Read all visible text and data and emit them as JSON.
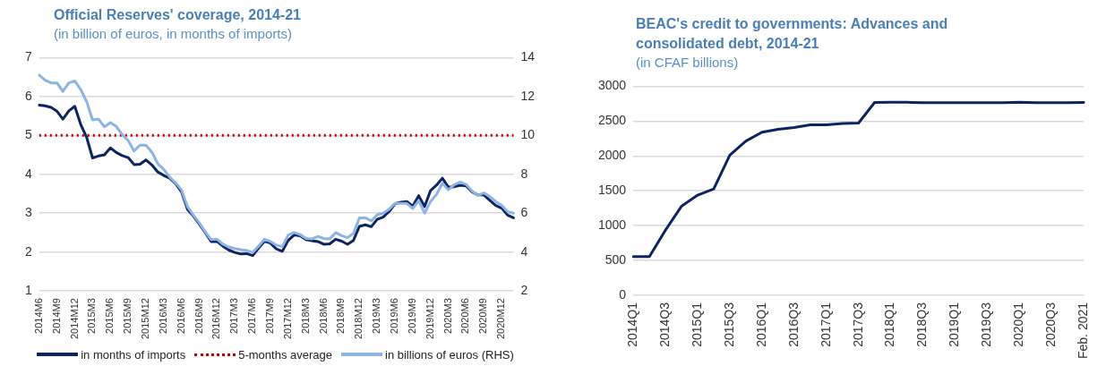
{
  "chart_data": [
    {
      "type": "line",
      "title": "Official Reserves' coverage, 2014-21",
      "subtitle": "(in billion of euros, in months of imports)",
      "categories": [
        "2014M6",
        null,
        null,
        "2014M9",
        null,
        null,
        "2014M12",
        null,
        null,
        "2015M3",
        null,
        null,
        "2015M6",
        null,
        null,
        "2015M9",
        null,
        null,
        "2015M12",
        null,
        null,
        "2016M3",
        null,
        null,
        "2016M6",
        null,
        null,
        "2016M9",
        null,
        null,
        "2016M12",
        null,
        null,
        "2017M3",
        null,
        null,
        "2017M6",
        null,
        null,
        "2017M9",
        null,
        null,
        "2017M12",
        null,
        null,
        "2018M3",
        null,
        null,
        "2018M6",
        null,
        null,
        "2018M9",
        null,
        null,
        "2018M12",
        null,
        null,
        "2019M3",
        null,
        null,
        "2019M6",
        null,
        null,
        "2019M9",
        null,
        null,
        "2019M12",
        null,
        null,
        "2020M3",
        null,
        null,
        "2020M6",
        null,
        null,
        "2020M9",
        null,
        null,
        "2020M12",
        null,
        null
      ],
      "series": [
        {
          "name": "in months of imports",
          "color": "#0c2461",
          "values": [
            5.78,
            5.76,
            5.72,
            5.62,
            5.42,
            5.63,
            5.75,
            5.28,
            4.95,
            4.42,
            4.47,
            4.5,
            4.68,
            4.56,
            4.48,
            4.43,
            4.25,
            4.26,
            4.37,
            4.24,
            4.06,
            3.97,
            3.9,
            3.76,
            3.55,
            3.1,
            2.93,
            2.72,
            2.5,
            2.27,
            2.27,
            2.15,
            2.05,
            1.99,
            1.95,
            1.96,
            1.91,
            2.1,
            2.28,
            2.23,
            2.08,
            2.02,
            2.3,
            2.44,
            2.42,
            2.32,
            2.29,
            2.27,
            2.2,
            2.21,
            2.33,
            2.28,
            2.2,
            2.3,
            2.66,
            2.7,
            2.65,
            2.84,
            2.9,
            3.04,
            3.24,
            3.28,
            3.3,
            3.18,
            3.45,
            3.17,
            3.58,
            3.72,
            3.9,
            3.67,
            3.68,
            3.72,
            3.7,
            3.55,
            3.47,
            3.47,
            3.33,
            3.2,
            3.13,
            2.95,
            2.88
          ]
        },
        {
          "name": "in billions of euros (RHS)",
          "color": "#8eb4e3",
          "axis": "y2",
          "values": [
            13.1,
            12.84,
            12.7,
            12.7,
            12.26,
            12.7,
            12.8,
            12.36,
            11.74,
            10.8,
            10.84,
            10.44,
            10.66,
            10.46,
            10.04,
            9.74,
            9.2,
            9.5,
            9.5,
            9.14,
            8.54,
            8.26,
            7.86,
            7.56,
            7.2,
            6.34,
            5.9,
            5.5,
            5.04,
            4.64,
            4.66,
            4.4,
            4.26,
            4.18,
            4.12,
            4.08,
            3.98,
            4.3,
            4.66,
            4.54,
            4.36,
            4.28,
            4.88,
            5.0,
            4.9,
            4.7,
            4.68,
            4.8,
            4.7,
            4.68,
            5.0,
            4.84,
            4.74,
            4.96,
            5.76,
            5.76,
            5.6,
            5.92,
            6.0,
            6.2,
            6.5,
            6.5,
            6.5,
            6.24,
            6.64,
            6.0,
            6.6,
            6.96,
            7.54,
            7.2,
            7.46,
            7.6,
            7.48,
            7.14,
            6.92,
            7.04,
            6.86,
            6.6,
            6.4,
            6.08,
            6.0
          ]
        }
      ],
      "ref_lines": [
        {
          "axis": "y",
          "value": 5,
          "label": "5-months average",
          "color": "#c00000",
          "line_style": "dotted"
        }
      ],
      "ylim": [
        1,
        7
      ],
      "yticks": [
        1,
        2,
        3,
        4,
        5,
        6,
        7
      ],
      "y2lim": [
        2,
        14
      ],
      "y2ticks": [
        2,
        4,
        6,
        8,
        10,
        12,
        14
      ],
      "grid": "y",
      "legend": "bottom"
    },
    {
      "type": "line",
      "title": "BEAC's credit to governments: Advances and consolidated debt, 2014-21",
      "subtitle": "(in CFAF billions)",
      "categories": [
        "2014Q1",
        null,
        "2014Q3",
        null,
        "2015Q1",
        null,
        "2015Q3",
        null,
        "2016Q1",
        null,
        "2016Q3",
        null,
        "2017Q1",
        null,
        "2017Q3",
        null,
        "2018Q1",
        null,
        "2018Q3",
        null,
        "2019Q1",
        null,
        "2019Q3",
        null,
        "2020Q1",
        null,
        "2020Q3",
        null,
        "Feb. 2021"
      ],
      "series": [
        {
          "color": "#0c2461",
          "values": [
            555,
            555,
            935,
            1278,
            1437,
            1527,
            2012,
            2213,
            2340,
            2382,
            2409,
            2445,
            2445,
            2467,
            2472,
            2768,
            2770,
            2770,
            2765,
            2765,
            2765,
            2765,
            2765,
            2765,
            2770,
            2765,
            2765,
            2765,
            2768
          ]
        }
      ],
      "ylim": [
        0,
        3000
      ],
      "yticks": [
        0,
        500,
        1000,
        1500,
        2000,
        2500,
        3000
      ],
      "grid": "y"
    }
  ]
}
